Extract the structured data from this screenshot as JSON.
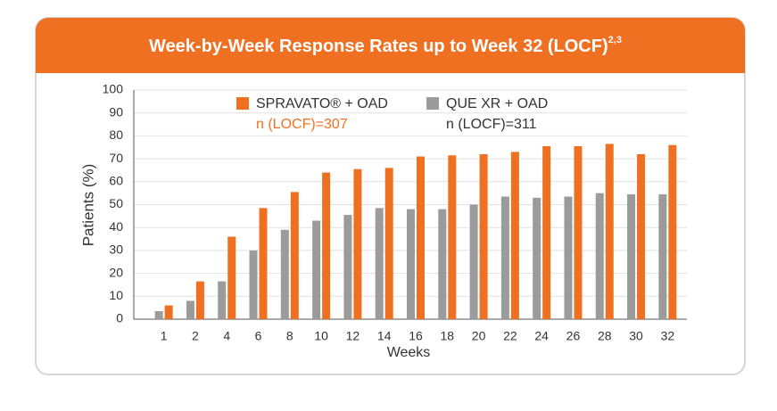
{
  "chart_data": {
    "type": "bar",
    "title": "Week-by-Week Response Rates up to Week 32 (LOCF)",
    "title_superscript": "2,3",
    "x_label": "Weeks",
    "y_label": "Patients (%)",
    "categories": [
      "1",
      "2",
      "4",
      "6",
      "8",
      "10",
      "12",
      "14",
      "16",
      "18",
      "20",
      "22",
      "24",
      "26",
      "28",
      "30",
      "32"
    ],
    "series": [
      {
        "name": "SPRAVATO® + OAD",
        "n_label": "n (LOCF)=307",
        "color": "#f07022",
        "values": [
          6,
          16.5,
          36,
          48.5,
          55.5,
          64,
          65.5,
          66,
          71,
          71.5,
          72,
          73,
          75.5,
          75.5,
          76.5,
          72,
          76
        ]
      },
      {
        "name": "QUE XR + OAD",
        "n_label": "n (LOCF)=311",
        "color": "#9b9b9b",
        "values": [
          3.5,
          8,
          16.5,
          30,
          39,
          43,
          45.5,
          48.5,
          48,
          48,
          50,
          53.5,
          53,
          53.5,
          55,
          54.5,
          54.5
        ]
      }
    ],
    "ylim": [
      0,
      100
    ],
    "yticks": [
      0,
      10,
      20,
      30,
      40,
      50,
      60,
      70,
      80,
      90,
      100
    ],
    "grid": true
  }
}
